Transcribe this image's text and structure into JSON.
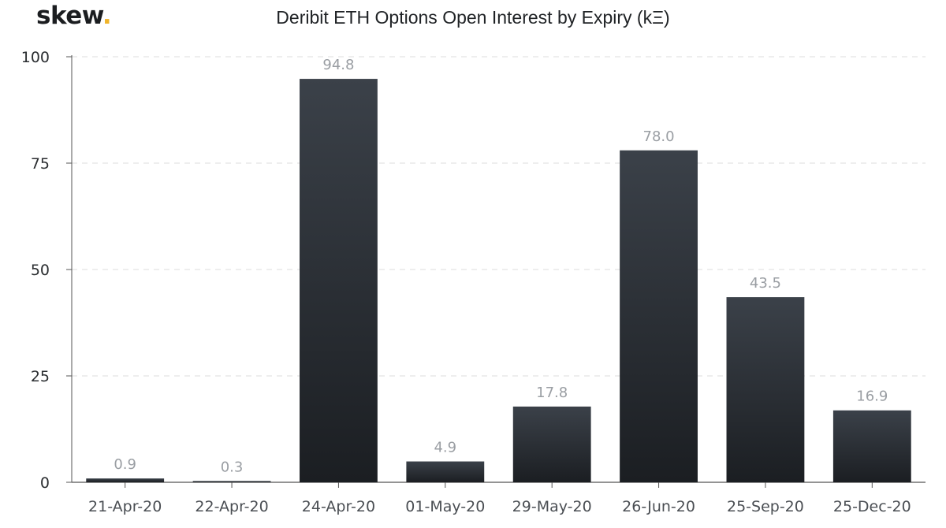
{
  "logo": {
    "text": "skew",
    "dot": "."
  },
  "chart_data": {
    "type": "bar",
    "title": "Deribit ETH Options Open Interest by Expiry (kΞ)",
    "xlabel": "",
    "ylabel": "",
    "categories": [
      "21-Apr-20",
      "22-Apr-20",
      "24-Apr-20",
      "01-May-20",
      "29-May-20",
      "26-Jun-20",
      "25-Sep-20",
      "25-Dec-20"
    ],
    "values": [
      0.9,
      0.3,
      94.8,
      4.9,
      17.8,
      78.0,
      43.5,
      16.9
    ],
    "data_labels": [
      "0.9",
      "0.3",
      "94.8",
      "4.9",
      "17.8",
      "78.0",
      "43.5",
      "16.9"
    ],
    "ylim": [
      0,
      100
    ],
    "yticks": [
      0,
      25,
      50,
      75,
      100
    ],
    "grid": true,
    "legend": "none",
    "colors": {
      "bar_top": "#3b4149",
      "bar_bottom": "#1b1e22",
      "grid": "#dcdcdc",
      "axis": "#555555",
      "accent_dot": "#f0b429"
    }
  }
}
